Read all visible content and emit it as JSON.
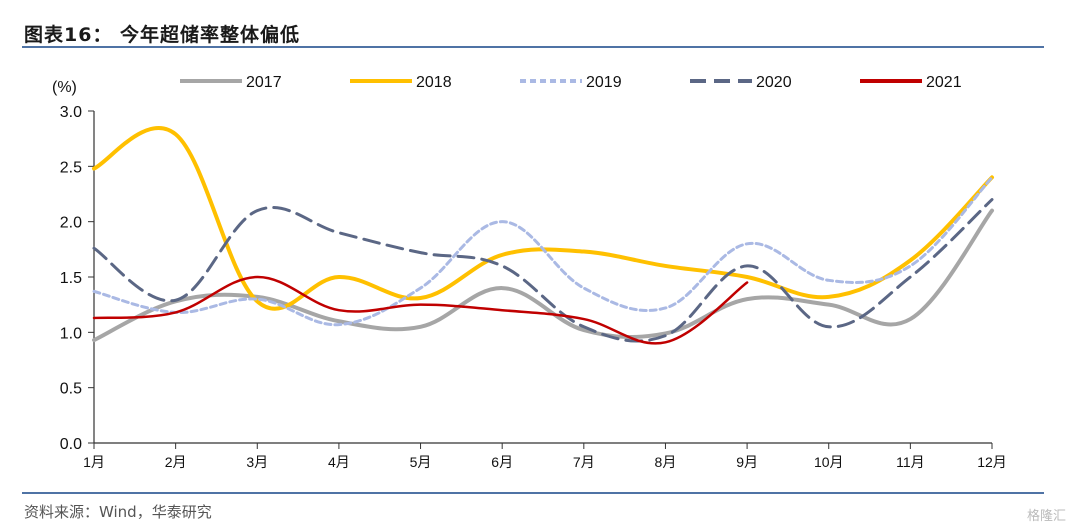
{
  "header": {
    "title": "图表16： 今年超储率整体偏低"
  },
  "footer": {
    "source": "资料来源：Wind，华泰研究",
    "watermark": "格隆汇"
  },
  "chart_data": {
    "type": "line",
    "title": "今年超储率整体偏低",
    "ylabel": "(%)",
    "xlabel": "",
    "ylim": [
      0,
      3.0
    ],
    "yticks": [
      "0.0",
      "0.5",
      "1.0",
      "1.5",
      "2.0",
      "2.5",
      "3.0"
    ],
    "categories": [
      "1月",
      "2月",
      "3月",
      "4月",
      "5月",
      "6月",
      "7月",
      "8月",
      "9月",
      "10月",
      "11月",
      "12月"
    ],
    "legend": "top",
    "grid": false,
    "series": [
      {
        "name": "2017",
        "color": "#a6a6a6",
        "style": "solid",
        "values": [
          0.93,
          1.28,
          1.32,
          1.1,
          1.05,
          1.4,
          1.02,
          0.99,
          1.3,
          1.25,
          1.12,
          2.1
        ]
      },
      {
        "name": "2018",
        "color": "#ffc000",
        "style": "solid",
        "values": [
          2.48,
          2.79,
          1.28,
          1.5,
          1.31,
          1.7,
          1.73,
          1.6,
          1.5,
          1.32,
          1.65,
          2.4
        ]
      },
      {
        "name": "2019",
        "color": "#aab9e4",
        "style": "dotted",
        "values": [
          1.37,
          1.18,
          1.3,
          1.07,
          1.4,
          2.0,
          1.4,
          1.22,
          1.8,
          1.47,
          1.6,
          2.4
        ]
      },
      {
        "name": "2020",
        "color": "#5b6785",
        "style": "dashed",
        "values": [
          1.76,
          1.29,
          2.1,
          1.9,
          1.72,
          1.6,
          1.05,
          0.97,
          1.6,
          1.05,
          1.5,
          2.2
        ]
      },
      {
        "name": "2021",
        "color": "#c00000",
        "style": "solid",
        "values": [
          1.13,
          1.18,
          1.5,
          1.2,
          1.25,
          1.2,
          1.12,
          0.91,
          1.45
        ]
      }
    ]
  }
}
